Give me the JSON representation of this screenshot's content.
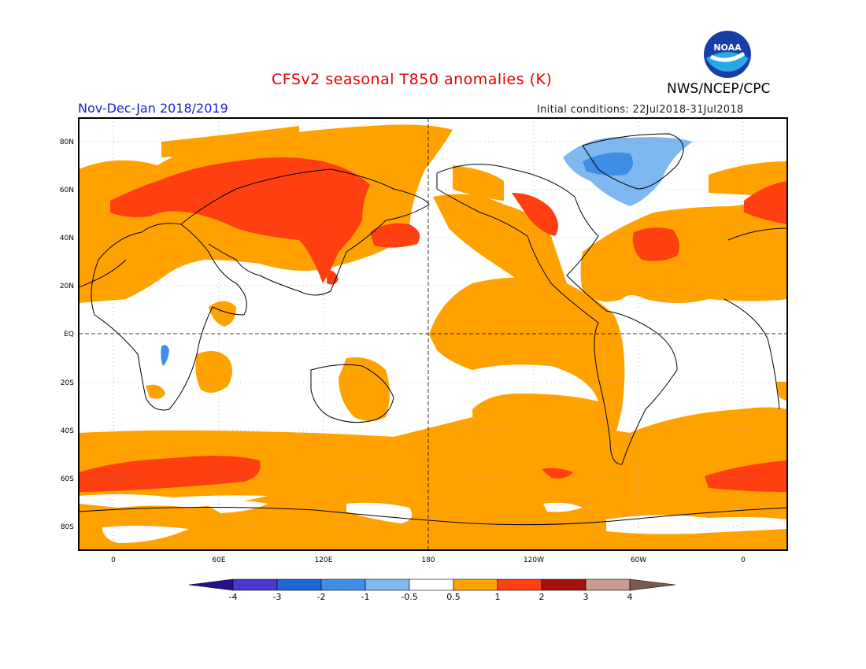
{
  "header": {
    "title": "CFSv2 seasonal T850 anomalies (K)",
    "period": "Nov-Dec-Jan 2018/2019",
    "initial_conditions": "Initial conditions: 22Jul2018-31Jul2018",
    "agency": "NWS/NCEP/CPC",
    "logo_text": "NOAA"
  },
  "map": {
    "lat_labels": [
      "80N",
      "60N",
      "40N",
      "20N",
      "EQ",
      "20S",
      "40S",
      "60S",
      "80S"
    ],
    "lon_labels": [
      "0",
      "60E",
      "120E",
      "180",
      "120W",
      "60W",
      "0"
    ]
  },
  "colorbar": {
    "labels": [
      "-4",
      "-3",
      "-2",
      "-1",
      "-0.5",
      "0.5",
      "1",
      "2",
      "3",
      "4"
    ],
    "colors": [
      "#2a0f8c",
      "#4b36cf",
      "#1d68d8",
      "#3e8ee6",
      "#7fb7f0",
      "#ffffff",
      "#ffa200",
      "#ff3f10",
      "#a50f0f",
      "#c79c8e",
      "#7a5a4e"
    ]
  },
  "palette": {
    "orange": "#ffa200",
    "red": "#ff3f10",
    "blue_light": "#7fb7f0",
    "blue": "#3e8ee6",
    "land_outline": "#000000"
  }
}
